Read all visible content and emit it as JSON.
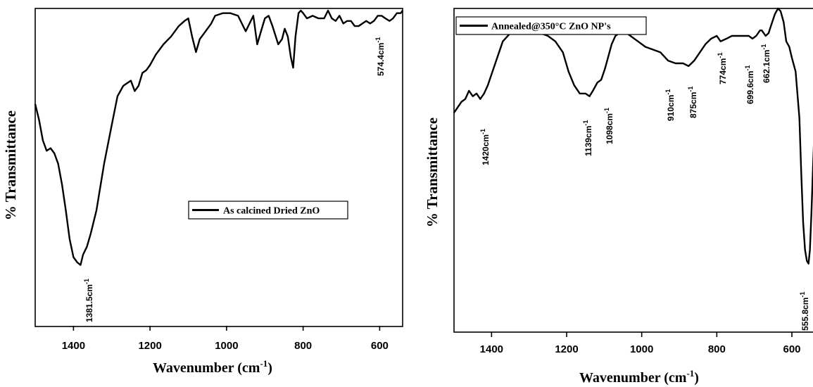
{
  "chart_data": [
    {
      "type": "line",
      "title": "",
      "xlabel": "Wavenumber (cm",
      "xlabel_sup": "-1",
      "xlabel_close": ")",
      "ylabel": "% Transmittance",
      "x_reversed": true,
      "xlim": [
        1500,
        540
      ],
      "ylim": [
        0,
        100
      ],
      "xticks": [
        1400,
        1200,
        1000,
        800,
        600
      ],
      "legend": "As calcined Dried ZnO",
      "legend_position": "center-right",
      "grid": false,
      "series": [
        {
          "name": "As calcined Dried ZnO",
          "x": [
            1500,
            1490,
            1480,
            1470,
            1460,
            1450,
            1440,
            1430,
            1420,
            1410,
            1400,
            1390,
            1381.5,
            1375,
            1365,
            1355,
            1340,
            1320,
            1300,
            1285,
            1270,
            1260,
            1250,
            1240,
            1230,
            1220,
            1210,
            1200,
            1185,
            1165,
            1145,
            1125,
            1110,
            1100,
            1090,
            1080,
            1070,
            1060,
            1050,
            1040,
            1030,
            1010,
            990,
            970,
            960,
            950,
            940,
            930,
            920,
            910,
            900,
            890,
            880,
            865,
            855,
            848,
            840,
            832,
            826,
            820,
            812,
            806,
            800,
            790,
            775,
            760,
            745,
            735,
            725,
            715,
            705,
            695,
            685,
            675,
            665,
            655,
            645,
            635,
            625,
            615,
            605,
            595,
            585,
            574.4,
            565,
            555,
            545,
            540
          ],
          "y": [
            64,
            58,
            50,
            46,
            47,
            45,
            41,
            33,
            23,
            12,
            5,
            3,
            2,
            6,
            9,
            14,
            23,
            41,
            56,
            67,
            71,
            72,
            73,
            69,
            71,
            76,
            77,
            79,
            83,
            87,
            90,
            94,
            96,
            97,
            90,
            84,
            89,
            91,
            93,
            95,
            98,
            99,
            99,
            98,
            95,
            92,
            95,
            98,
            87,
            92,
            97,
            98,
            94,
            87,
            89,
            93,
            90,
            82,
            78,
            90,
            99,
            100,
            99,
            97,
            98,
            97,
            97,
            100,
            97,
            96,
            98,
            95,
            96,
            96,
            94,
            94,
            95,
            96,
            95,
            96,
            98,
            98,
            97,
            96,
            97,
            99,
            99,
            100
          ]
        }
      ],
      "annotations": [
        "1381.5cm",
        "574.4cm"
      ],
      "annotation_sup": "-1"
    },
    {
      "type": "line",
      "title": "",
      "xlabel": "Wavenumber (cm",
      "xlabel_sup": "-1",
      "xlabel_close": ")",
      "ylabel": "% Transmittance",
      "x_reversed": true,
      "xlim": [
        1500,
        525
      ],
      "ylim": [
        0,
        100
      ],
      "xticks": [
        1400,
        1200,
        1000,
        800,
        600
      ],
      "legend": "Annealed@350°C ZnO NP's",
      "legend_position": "top-left",
      "grid": false,
      "series": [
        {
          "name": "Annealed@350°C ZnO NP's",
          "x": [
            1500,
            1490,
            1480,
            1470,
            1460,
            1450,
            1440,
            1430,
            1420,
            1410,
            1400,
            1385,
            1370,
            1350,
            1330,
            1310,
            1290,
            1270,
            1250,
            1230,
            1210,
            1195,
            1180,
            1165,
            1150,
            1139,
            1130,
            1118,
            1108,
            1098,
            1090,
            1080,
            1070,
            1060,
            1050,
            1040,
            1030,
            1010,
            990,
            970,
            950,
            930,
            910,
            890,
            875,
            860,
            845,
            830,
            815,
            800,
            790,
            774,
            760,
            745,
            730,
            715,
            705,
            695,
            685,
            680,
            670,
            662,
            655,
            645,
            637,
            630,
            622,
            615,
            607,
            600,
            590,
            580,
            575,
            570,
            565,
            560,
            555.8,
            552,
            548,
            543,
            538,
            533,
            528,
            525
          ],
          "y": [
            62,
            64,
            66,
            67,
            70,
            68,
            69,
            67,
            69,
            72,
            76,
            82,
            88,
            91,
            91,
            92,
            92,
            91,
            90,
            88,
            84,
            77,
            72,
            69,
            69,
            68,
            70,
            73,
            74,
            78,
            82,
            87,
            90,
            91,
            91,
            91,
            90,
            88,
            86,
            85,
            84,
            81,
            80,
            80,
            79,
            81,
            84,
            87,
            89,
            90,
            88,
            89,
            90,
            90,
            90,
            90,
            89,
            90,
            92,
            92,
            90,
            91,
            94,
            98,
            100,
            99,
            95,
            88,
            86,
            82,
            77,
            60,
            40,
            22,
            12,
            8,
            7,
            12,
            25,
            45,
            62,
            72,
            75,
            76
          ]
        }
      ],
      "annotations": [
        "1420cm",
        "1139cm",
        "1098cm",
        "910cm",
        "875cm",
        "774cm",
        "699.6cm",
        "662.1cm",
        "555.8cm"
      ],
      "annotation_sup": "-1"
    }
  ]
}
